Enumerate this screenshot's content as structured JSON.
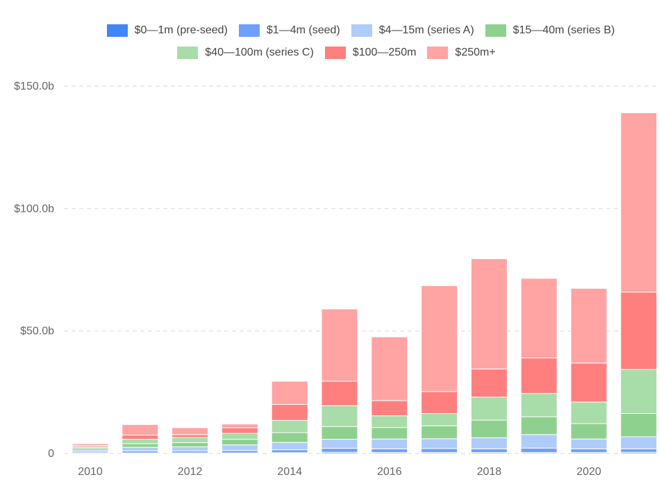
{
  "chart_data": {
    "type": "bar",
    "stacked": true,
    "legend_position": "top-center",
    "grid": true,
    "categories": [
      "2010",
      "2011",
      "2012",
      "2013",
      "2014",
      "2015",
      "2016",
      "2017",
      "2018",
      "2019",
      "2020",
      "2021"
    ],
    "x_tick_labels": [
      "2010",
      "2012",
      "2014",
      "2016",
      "2018",
      "2020"
    ],
    "y_ticks": [
      {
        "value": 0,
        "label": "0"
      },
      {
        "value": 50,
        "label": "$50.0b"
      },
      {
        "value": 100,
        "label": "$100.0b"
      },
      {
        "value": 150,
        "label": "$150.0b"
      }
    ],
    "ylim": [
      0,
      155
    ],
    "series": [
      {
        "name": "$0—1m (pre-seed)",
        "color": "#4285f4",
        "values": [
          0.1,
          0.2,
          0.2,
          0.2,
          0.3,
          0.5,
          0.4,
          0.4,
          0.4,
          0.4,
          0.4,
          0.5
        ]
      },
      {
        "name": "$1—4m (seed)",
        "color": "#6fa0f8",
        "values": [
          0.5,
          0.8,
          0.8,
          1.0,
          1.2,
          1.6,
          1.5,
          1.6,
          1.5,
          1.8,
          1.5,
          1.4
        ]
      },
      {
        "name": "$4—15m (series A)",
        "color": "#aecbfa",
        "values": [
          0.8,
          1.5,
          1.7,
          2.3,
          3.0,
          3.7,
          4.0,
          4.0,
          4.5,
          5.5,
          4.0,
          4.9
        ]
      },
      {
        "name": "$15—40m (series B)",
        "color": "#8ed18e",
        "values": [
          0.8,
          1.5,
          1.7,
          2.3,
          4.0,
          5.2,
          4.7,
          5.3,
          7.2,
          7.3,
          6.3,
          9.5
        ]
      },
      {
        "name": "$40—100m (series C)",
        "color": "#a8dca8",
        "values": [
          0.6,
          1.8,
          2.1,
          2.4,
          5.0,
          8.5,
          4.8,
          5.0,
          9.4,
          9.5,
          8.8,
          18.0
        ]
      },
      {
        "name": "$100—250m",
        "color": "#ff7f7f",
        "values": [
          0.5,
          1.7,
          1.2,
          2.3,
          6.5,
          10.0,
          6.2,
          9.0,
          11.5,
          14.5,
          15.9,
          31.6
        ]
      },
      {
        "name": "$250m+",
        "color": "#ffa3a3",
        "values": [
          0.7,
          4.3,
          2.8,
          1.5,
          9.5,
          29.5,
          26.0,
          43.2,
          45.0,
          32.5,
          30.5,
          73.2
        ]
      }
    ]
  }
}
